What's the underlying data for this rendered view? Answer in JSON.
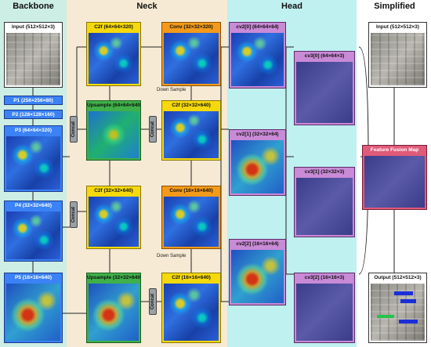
{
  "sections": {
    "backbone": "Backbone",
    "neck": "Neck",
    "head": "Head",
    "simplified": "Simplified"
  },
  "backbone": {
    "input": "Input (512×512×3)",
    "p1": "P1 (256×256×80)",
    "p2": "P2 (128×128×160)",
    "p3": "P3 (64×64×320)",
    "p4": "P4 (32×32×640)",
    "p5": "P5 (16×16×640)"
  },
  "neck": {
    "c2f_1": "C2f  (64×64×320)",
    "conv_1": "Conv (32×32×320)",
    "upsample_1": "Upsample (64×64×640)",
    "c2f_2": "C2f (32×32×640)",
    "c2f_3": "C2f  (32×32×640)",
    "conv_2": "Conv (16×16×640)",
    "upsample_2": "Upsample (32×32×640)",
    "c2f_4": "C2f (16×16×640)",
    "concat": "Concat",
    "down_sample": "Down Sample"
  },
  "head": {
    "cv2_0": "cv2[0] (64×64×64)",
    "cv3_0": "cv3[0] (64×64×3)",
    "cv2_1": "cv2[1] (32×32×64)",
    "cv3_1": "cv3[1] (32×32×3)",
    "cv2_2": "cv2[2] (16×16×64)",
    "cv3_2": "cv3[2] (16×16×3)"
  },
  "simplified": {
    "input": "Input (512×512×3)",
    "fusion": "Feature Fusion Map",
    "output": "Output (512×512×3)"
  },
  "colors": {
    "backbone_bg": "#cdeee4",
    "neck_bg": "#f6ead4",
    "head_bg": "#bff1f0",
    "c2f_border": "#e6c300",
    "conv_border": "#e88a00",
    "upsample_border": "#2e9a2e",
    "head_border": "#c46ad0",
    "fusion_border": "#d24a6a"
  }
}
